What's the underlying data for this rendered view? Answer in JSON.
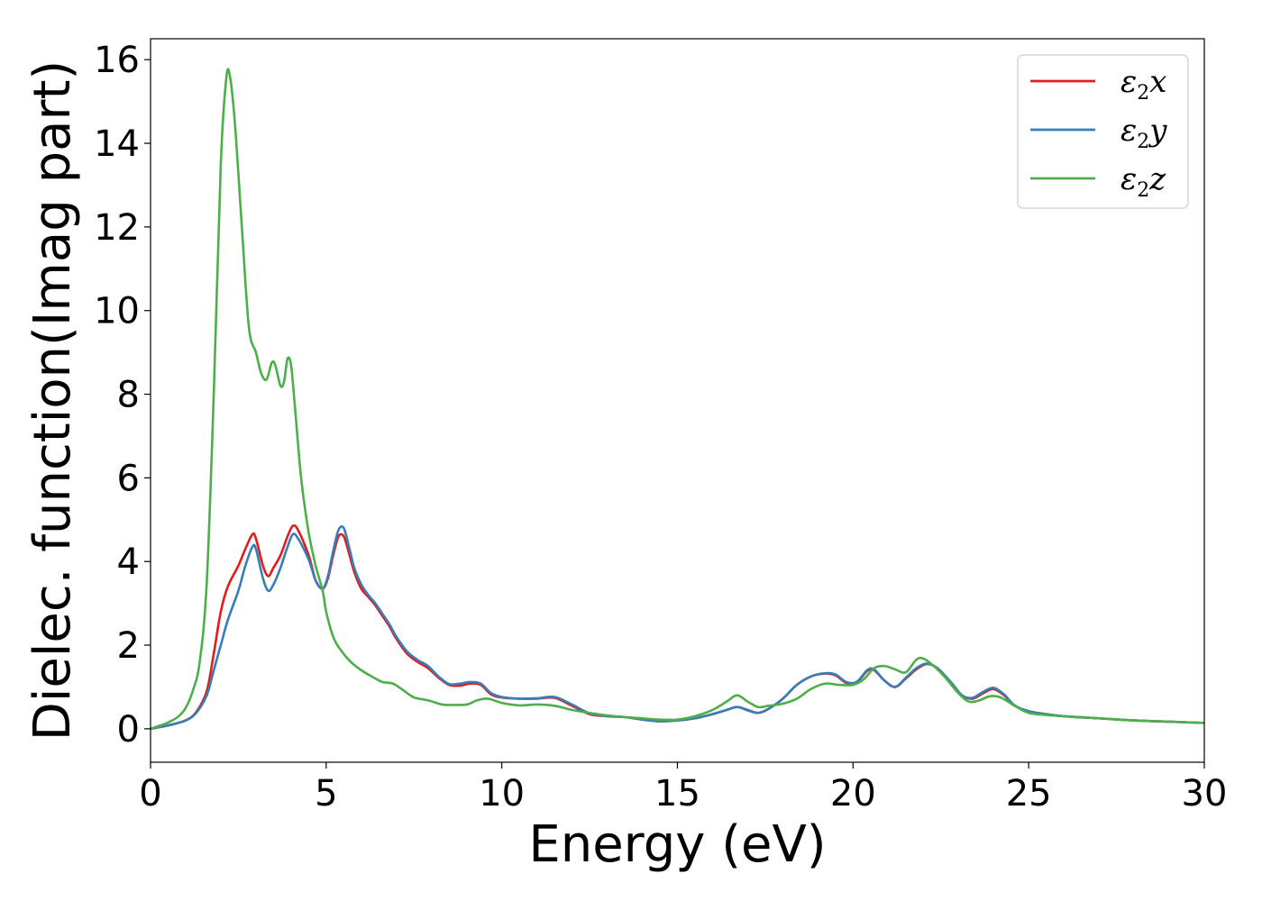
{
  "chart_data": {
    "type": "line",
    "title": "",
    "xlabel": "Energy (eV)",
    "ylabel": "Dielec. function(Imag part)",
    "xlim": [
      0,
      30
    ],
    "ylim": [
      -0.8,
      16.5
    ],
    "xticks": [
      0,
      5,
      10,
      15,
      20,
      25,
      30
    ],
    "yticks": [
      0,
      2,
      4,
      6,
      8,
      10,
      12,
      14,
      16
    ],
    "grid": false,
    "legend_position": "top-right",
    "series": [
      {
        "name": "ε2x",
        "legend_main": "ε",
        "legend_sub": "2",
        "legend_var": "x",
        "color": "#e41a1c",
        "x": [
          0,
          0.5,
          1.0,
          1.3,
          1.6,
          1.8,
          2.0,
          2.2,
          2.5,
          2.7,
          2.9,
          3.0,
          3.2,
          3.35,
          3.5,
          3.7,
          3.9,
          4.05,
          4.2,
          4.5,
          4.7,
          4.9,
          5.05,
          5.2,
          5.35,
          5.5,
          5.65,
          5.8,
          6.0,
          6.2,
          6.4,
          6.6,
          6.8,
          7.0,
          7.3,
          7.6,
          7.9,
          8.2,
          8.5,
          8.8,
          9.1,
          9.4,
          9.7,
          10.0,
          10.5,
          11.0,
          11.5,
          12.0,
          12.5,
          13.0,
          13.5,
          14.0,
          14.5,
          15.0,
          15.5,
          16.0,
          16.4,
          16.7,
          17.0,
          17.3,
          17.6,
          18.0,
          18.4,
          18.8,
          19.2,
          19.5,
          19.8,
          20.1,
          20.4,
          20.6,
          20.9,
          21.2,
          21.5,
          21.8,
          22.1,
          22.4,
          22.8,
          23.1,
          23.4,
          23.7,
          24.0,
          24.3,
          24.6,
          25.0,
          25.5,
          26.0,
          27.0,
          28.0,
          29.0,
          30.0
        ],
        "y": [
          0.0,
          0.08,
          0.2,
          0.4,
          0.9,
          1.8,
          2.8,
          3.4,
          3.9,
          4.3,
          4.65,
          4.55,
          3.9,
          3.65,
          3.85,
          4.15,
          4.6,
          4.85,
          4.75,
          4.15,
          3.55,
          3.35,
          3.6,
          4.15,
          4.6,
          4.6,
          4.2,
          3.75,
          3.35,
          3.15,
          2.95,
          2.7,
          2.45,
          2.15,
          1.8,
          1.6,
          1.45,
          1.22,
          1.05,
          1.03,
          1.08,
          1.05,
          0.82,
          0.75,
          0.72,
          0.72,
          0.74,
          0.55,
          0.35,
          0.3,
          0.28,
          0.22,
          0.18,
          0.2,
          0.25,
          0.35,
          0.45,
          0.52,
          0.45,
          0.38,
          0.48,
          0.72,
          1.05,
          1.25,
          1.32,
          1.28,
          1.1,
          1.1,
          1.38,
          1.4,
          1.15,
          1.0,
          1.2,
          1.42,
          1.55,
          1.45,
          1.1,
          0.8,
          0.72,
          0.85,
          0.95,
          0.8,
          0.55,
          0.42,
          0.35,
          0.3,
          0.25,
          0.2,
          0.17,
          0.14
        ]
      },
      {
        "name": "ε2y",
        "legend_main": "ε",
        "legend_sub": "2",
        "legend_var": "y",
        "color": "#377eb8",
        "x": [
          0,
          0.5,
          1.0,
          1.3,
          1.6,
          1.8,
          2.0,
          2.2,
          2.5,
          2.7,
          2.9,
          3.0,
          3.2,
          3.35,
          3.5,
          3.7,
          3.9,
          4.05,
          4.2,
          4.5,
          4.7,
          4.9,
          5.05,
          5.2,
          5.35,
          5.5,
          5.65,
          5.8,
          6.0,
          6.2,
          6.4,
          6.6,
          6.8,
          7.0,
          7.3,
          7.6,
          7.9,
          8.2,
          8.5,
          8.8,
          9.1,
          9.4,
          9.7,
          10.0,
          10.5,
          11.0,
          11.5,
          12.0,
          12.5,
          13.0,
          13.5,
          14.0,
          14.5,
          15.0,
          15.5,
          16.0,
          16.4,
          16.7,
          17.0,
          17.3,
          17.6,
          18.0,
          18.4,
          18.8,
          19.2,
          19.5,
          19.8,
          20.1,
          20.4,
          20.6,
          20.9,
          21.2,
          21.5,
          21.8,
          22.1,
          22.4,
          22.8,
          23.1,
          23.4,
          23.7,
          24.0,
          24.3,
          24.6,
          25.0,
          25.5,
          26.0,
          27.0,
          28.0,
          29.0,
          30.0
        ],
        "y": [
          0.0,
          0.08,
          0.2,
          0.38,
          0.8,
          1.4,
          2.0,
          2.6,
          3.3,
          3.9,
          4.35,
          4.3,
          3.6,
          3.3,
          3.45,
          3.85,
          4.35,
          4.65,
          4.55,
          4.05,
          3.55,
          3.35,
          3.65,
          4.25,
          4.75,
          4.8,
          4.35,
          3.85,
          3.45,
          3.2,
          3.0,
          2.75,
          2.5,
          2.2,
          1.85,
          1.65,
          1.5,
          1.25,
          1.07,
          1.08,
          1.12,
          1.08,
          0.85,
          0.76,
          0.72,
          0.73,
          0.76,
          0.58,
          0.37,
          0.3,
          0.28,
          0.22,
          0.18,
          0.2,
          0.25,
          0.35,
          0.45,
          0.52,
          0.44,
          0.38,
          0.48,
          0.72,
          1.05,
          1.25,
          1.33,
          1.3,
          1.12,
          1.12,
          1.4,
          1.42,
          1.15,
          1.0,
          1.22,
          1.45,
          1.56,
          1.45,
          1.1,
          0.8,
          0.74,
          0.88,
          0.98,
          0.82,
          0.56,
          0.42,
          0.35,
          0.3,
          0.25,
          0.2,
          0.17,
          0.14
        ]
      },
      {
        "name": "ε2z",
        "legend_main": "ε",
        "legend_sub": "2",
        "legend_var": "z",
        "color": "#4daf4a",
        "x": [
          0,
          0.5,
          0.8,
          1.0,
          1.2,
          1.4,
          1.6,
          1.8,
          2.0,
          2.15,
          2.25,
          2.4,
          2.6,
          2.8,
          3.0,
          3.15,
          3.3,
          3.45,
          3.55,
          3.7,
          3.8,
          3.9,
          4.0,
          4.1,
          4.2,
          4.3,
          4.5,
          4.7,
          4.9,
          5.0,
          5.2,
          5.4,
          5.7,
          6.0,
          6.3,
          6.6,
          6.9,
          7.2,
          7.5,
          7.9,
          8.3,
          8.6,
          9.0,
          9.3,
          9.6,
          10.0,
          10.5,
          11.0,
          11.5,
          12.0,
          12.5,
          13.0,
          13.5,
          14.0,
          14.5,
          15.0,
          15.5,
          16.0,
          16.4,
          16.7,
          17.0,
          17.3,
          17.6,
          18.0,
          18.4,
          18.8,
          19.2,
          19.6,
          20.0,
          20.3,
          20.6,
          20.9,
          21.2,
          21.5,
          21.8,
          22.0,
          22.3,
          22.6,
          23.0,
          23.3,
          23.6,
          23.9,
          24.2,
          24.6,
          25.0,
          25.5,
          26.0,
          27.0,
          28.0,
          29.0,
          30.0
        ],
        "y": [
          0.0,
          0.15,
          0.3,
          0.5,
          0.9,
          1.6,
          3.5,
          8.0,
          13.5,
          15.5,
          15.65,
          14.5,
          12.0,
          9.6,
          9.0,
          8.5,
          8.35,
          8.75,
          8.7,
          8.2,
          8.3,
          8.85,
          8.7,
          7.8,
          6.8,
          5.9,
          4.7,
          3.9,
          3.3,
          2.8,
          2.2,
          1.9,
          1.6,
          1.4,
          1.25,
          1.12,
          1.08,
          0.92,
          0.75,
          0.68,
          0.58,
          0.57,
          0.58,
          0.68,
          0.72,
          0.62,
          0.56,
          0.58,
          0.55,
          0.45,
          0.38,
          0.32,
          0.28,
          0.25,
          0.22,
          0.22,
          0.3,
          0.45,
          0.65,
          0.8,
          0.65,
          0.52,
          0.55,
          0.6,
          0.72,
          0.95,
          1.08,
          1.05,
          1.05,
          1.18,
          1.45,
          1.5,
          1.42,
          1.35,
          1.65,
          1.68,
          1.5,
          1.25,
          0.85,
          0.65,
          0.68,
          0.78,
          0.75,
          0.55,
          0.38,
          0.33,
          0.3,
          0.25,
          0.2,
          0.17,
          0.14
        ]
      }
    ]
  }
}
